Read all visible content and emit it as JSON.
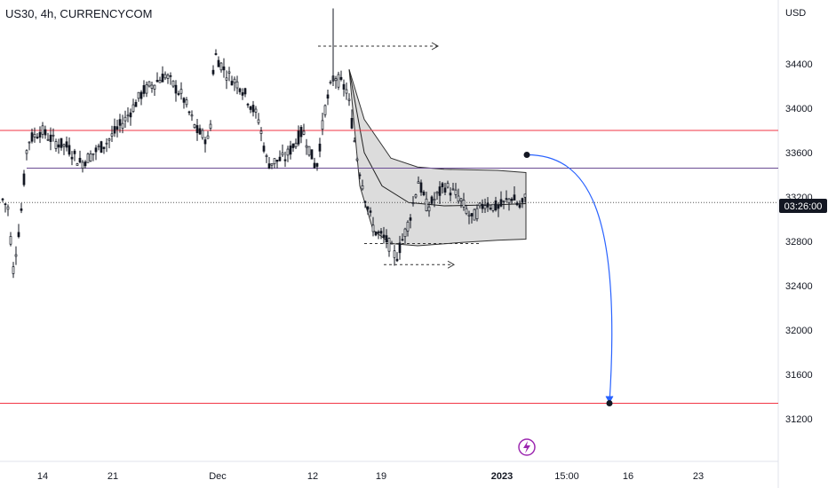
{
  "header": {
    "symbol_label": "US30, 4h, CURRENCYCOM"
  },
  "axis": {
    "currency_label": "USD",
    "price_ticks": [
      "34400",
      "34000",
      "33600",
      "33200",
      "32800",
      "32400",
      "32000",
      "31600",
      "31200"
    ],
    "time_ticks": [
      "14",
      "21",
      "Dec",
      "12",
      "19",
      "2023",
      "15:00",
      "16",
      "23"
    ],
    "countdown": "03:26:00"
  },
  "colors": {
    "up": "#131722",
    "down": "#131722",
    "level_line": "#f23645",
    "channel_line": "#6a4c93",
    "dotted_line": "#555555",
    "projection": "#2962ff",
    "band_fill": "#d3d3d3",
    "badge": "#131722",
    "flash_icon": "#9c27b0"
  },
  "icons": {
    "flash": "lightning-bolt-icon"
  },
  "chart_data": {
    "type": "candlestick",
    "title": "US30, 4h, CURRENCYCOM",
    "ylabel": "USD",
    "ylim": [
      30850,
      34950
    ],
    "horizontal_levels": [
      33800,
      33460,
      31340
    ],
    "current_price_line": 33150,
    "projection": {
      "from": 33580,
      "to": 31340
    },
    "bands_upper": [
      34350,
      33900,
      33500,
      33450,
      33420
    ],
    "bands_lower": [
      32950,
      32750,
      32780,
      32800,
      32820
    ],
    "ohlc": []
  }
}
